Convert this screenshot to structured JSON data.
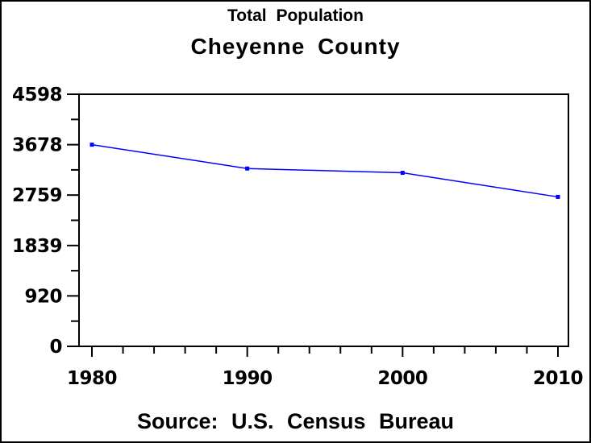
{
  "chart_data": {
    "type": "line",
    "title": "Cheyenne County",
    "subtitle": "Total Population",
    "footnote": "Source: U.S. Census Bureau",
    "categories": [
      "1980",
      "1990",
      "2000",
      "2010"
    ],
    "values": [
      3678,
      3243,
      3165,
      2726
    ],
    "series_name": "Total Population",
    "xlabel": "",
    "ylabel": "",
    "ylim": [
      0,
      4598
    ],
    "yticks": [
      "0",
      "920",
      "1839",
      "2759",
      "3678",
      "4598"
    ],
    "ytick_values": [
      0,
      920,
      1839,
      2759,
      3678,
      4598
    ],
    "x_minor_ticks_per_interval": 4,
    "y_minor_ticks_per_interval": 1,
    "grid": false,
    "legend": "none",
    "marker": "dot",
    "line_color": "#0000ff",
    "marker_color": "#0000ff",
    "frame_color": "#000000",
    "text_color": "#000000",
    "background_color": "#ffffff"
  }
}
